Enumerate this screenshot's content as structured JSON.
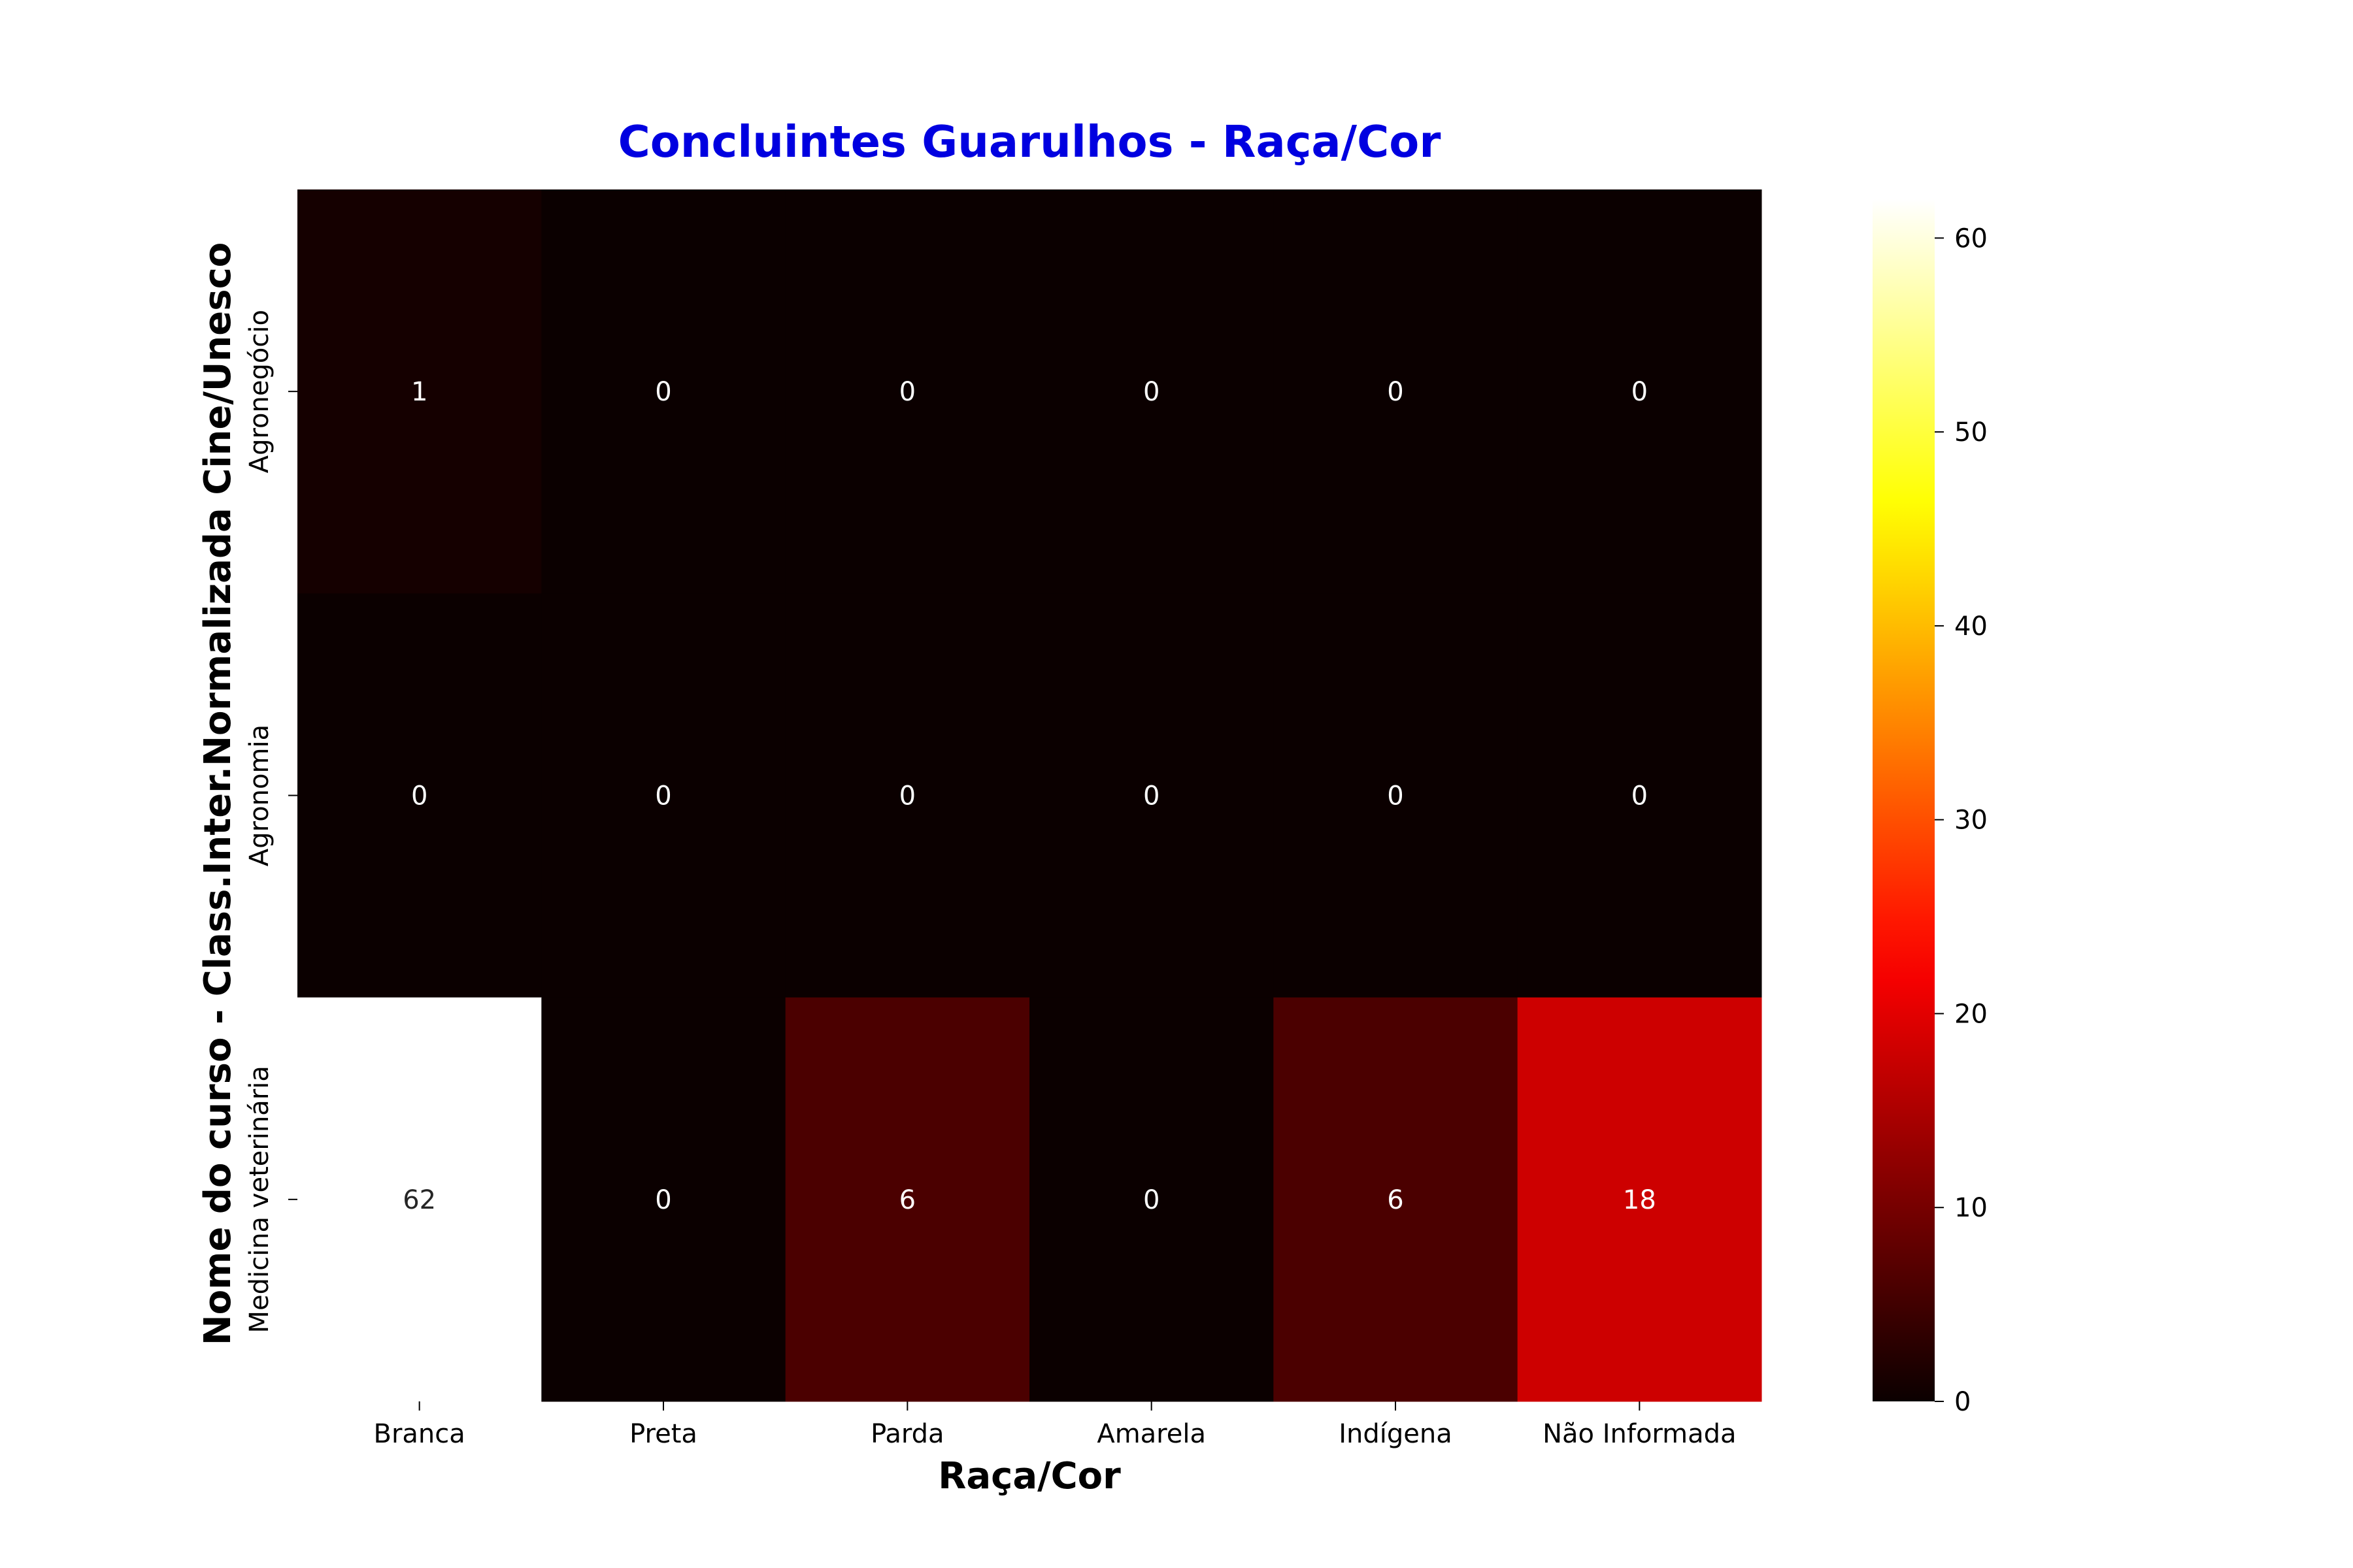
{
  "chart_data": {
    "type": "heatmap",
    "title": "Concluintes Guarulhos - Raça/Cor",
    "xlabel": "Raça/Cor",
    "ylabel": "Nome do curso - Class.Inter.Normalizada Cine/Unesco",
    "x_categories": [
      "Branca",
      "Preta",
      "Parda",
      "Amarela",
      "Indígena",
      "Não Informada"
    ],
    "y_categories": [
      "Agronegócio",
      "Agronomia",
      "Medicina veterinária"
    ],
    "values": [
      [
        1,
        0,
        0,
        0,
        0,
        0
      ],
      [
        0,
        0,
        0,
        0,
        0,
        0
      ],
      [
        62,
        0,
        6,
        0,
        6,
        18
      ]
    ],
    "colormap": "hot",
    "colorbar": {
      "range": [
        0,
        62
      ],
      "ticks": [
        0,
        10,
        20,
        30,
        40,
        50,
        60
      ],
      "tick_labels": [
        "0",
        "10",
        "20",
        "30",
        "40",
        "50",
        "60"
      ]
    },
    "colors": {
      "title": "#0000e0"
    },
    "annotations": true
  }
}
